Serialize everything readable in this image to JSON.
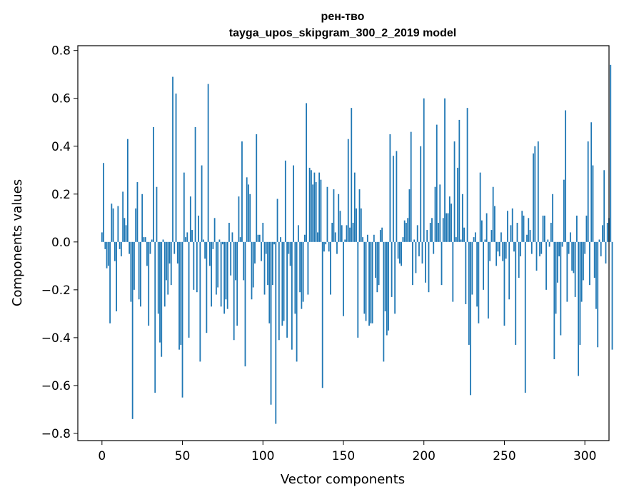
{
  "chart_data": {
    "type": "bar",
    "title_line1": "рен-тво",
    "title_line2": "tayga_upos_skipgram_300_2_2019 model",
    "xlabel": "Vector components",
    "ylabel": "Components values",
    "xlim": [
      -15,
      315
    ],
    "ylim": [
      -0.83,
      0.82
    ],
    "xticks": [
      0,
      50,
      100,
      150,
      200,
      250,
      300
    ],
    "xtick_labels": [
      "0",
      "50",
      "100",
      "150",
      "200",
      "250",
      "300"
    ],
    "yticks": [
      -0.8,
      -0.6,
      -0.4,
      -0.2,
      0.0,
      0.2,
      0.4,
      0.6,
      0.8
    ],
    "ytick_labels": [
      "−0.8",
      "−0.6",
      "−0.4",
      "−0.2",
      "0.0",
      "0.2",
      "0.4",
      "0.6",
      "0.8"
    ],
    "bar_color": "#1f77b4",
    "values": [
      0.04,
      0.33,
      -0.03,
      -0.11,
      -0.1,
      -0.34,
      0.16,
      0.14,
      -0.08,
      -0.29,
      0.15,
      -0.03,
      -0.06,
      0.21,
      0.1,
      0.07,
      0.43,
      -0.05,
      -0.25,
      -0.74,
      -0.2,
      0.14,
      0.25,
      -0.24,
      -0.27,
      0.2,
      0.02,
      0.02,
      -0.1,
      -0.35,
      -0.05,
      0.01,
      0.48,
      -0.63,
      0.23,
      -0.3,
      -0.42,
      -0.48,
      0.01,
      -0.27,
      -0.16,
      -0.22,
      -0.09,
      -0.18,
      0.69,
      -0.05,
      0.62,
      -0.09,
      -0.45,
      -0.43,
      -0.65,
      0.29,
      0.02,
      0.04,
      -0.4,
      0.19,
      0.05,
      -0.2,
      0.48,
      -0.21,
      0.11,
      -0.5,
      0.32,
      0.01,
      -0.07,
      -0.38,
      0.66,
      -0.1,
      -0.27,
      -0.03,
      0.1,
      -0.22,
      -0.19,
      0.01,
      -0.27,
      -0.01,
      -0.3,
      -0.24,
      -0.28,
      0.08,
      -0.14,
      0.04,
      -0.41,
      -0.16,
      -0.35,
      0.19,
      0.02,
      0.42,
      -0.16,
      -0.52,
      0.27,
      0.24,
      0.2,
      -0.24,
      -0.19,
      -0.09,
      0.45,
      0.03,
      0.03,
      -0.08,
      0.08,
      -0.22,
      -0.05,
      -0.18,
      -0.34,
      -0.68,
      -0.18,
      -0.01,
      -0.76,
      0.18,
      -0.41,
      0.02,
      -0.35,
      -0.33,
      0.34,
      -0.4,
      -0.05,
      -0.1,
      -0.45,
      0.32,
      -0.3,
      -0.5,
      0.07,
      -0.21,
      -0.28,
      -0.25,
      0.03,
      0.58,
      -0.22,
      0.31,
      0.3,
      0.24,
      0.29,
      0.25,
      0.04,
      0.29,
      0.26,
      -0.61,
      -0.04,
      -0.01,
      0.23,
      -0.04,
      -0.22,
      0.08,
      0.22,
      0.04,
      -0.05,
      0.2,
      0.13,
      0.07,
      -0.31,
      0.01,
      0.07,
      0.43,
      0.06,
      0.56,
      0.08,
      0.29,
      0.14,
      -0.4,
      0.22,
      0.14,
      0.02,
      -0.3,
      -0.33,
      0.03,
      -0.35,
      -0.34,
      -0.34,
      0.03,
      -0.15,
      -0.21,
      -0.18,
      0.05,
      0.06,
      -0.5,
      -0.29,
      -0.39,
      -0.37,
      0.45,
      -0.23,
      0.36,
      -0.3,
      0.38,
      -0.07,
      -0.09,
      -0.1,
      0.02,
      0.09,
      0.08,
      0.1,
      0.22,
      0.46,
      -0.18,
      0.01,
      -0.13,
      0.07,
      -0.06,
      0.4,
      -0.09,
      0.6,
      -0.17,
      0.05,
      -0.21,
      0.08,
      0.1,
      -0.05,
      0.23,
      0.49,
      0.08,
      0.24,
      -0.18,
      0.1,
      0.6,
      0.12,
      0.12,
      0.19,
      0.16,
      -0.25,
      0.42,
      0.02,
      0.31,
      0.51,
      0.01,
      0.2,
      0.06,
      -0.26,
      0.56,
      -0.43,
      -0.64,
      -0.22,
      0.02,
      0.04,
      -0.27,
      -0.34,
      0.29,
      0.09,
      -0.2,
      0.01,
      0.12,
      -0.32,
      -0.08,
      0.05,
      0.23,
      0.15,
      -0.1,
      -0.04,
      -0.06,
      0.04,
      -0.08,
      -0.35,
      -0.07,
      0.13,
      -0.24,
      0.07,
      0.14,
      -0.04,
      -0.43,
      0.08,
      -0.15,
      -0.06,
      0.13,
      0.11,
      -0.63,
      0.03,
      0.1,
      0.05,
      -0.05,
      0.37,
      0.4,
      -0.12,
      0.42,
      -0.06,
      -0.05,
      0.11,
      0.11,
      -0.2,
      0.01,
      -0.02,
      0.08,
      0.2,
      -0.49,
      -0.3,
      -0.17,
      -0.06,
      -0.39,
      -0.02,
      0.26,
      0.55,
      -0.25,
      -0.05,
      0.04,
      -0.12,
      -0.13,
      -0.23,
      0.11,
      -0.56,
      -0.43,
      -0.25,
      -0.16,
      -0.05,
      0.11,
      0.42,
      -0.18,
      0.5,
      0.32,
      -0.15,
      -0.28,
      -0.44,
      0.01,
      -0.06,
      0.07,
      0.3,
      -0.09,
      0.08,
      0.1,
      0.74,
      -0.45
    ]
  }
}
